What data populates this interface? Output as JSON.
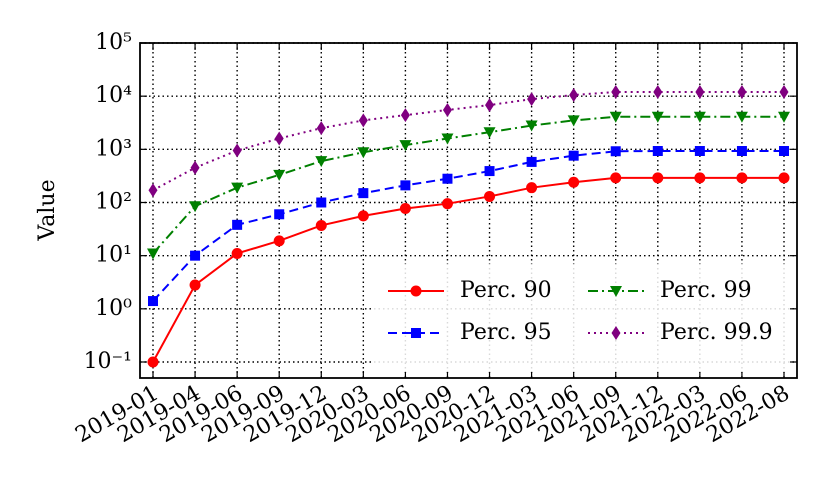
{
  "chart_data": {
    "type": "line",
    "ylabel": "Value",
    "yscale": "log",
    "grid": true,
    "legend": "lower right",
    "categories": [
      "2019-01",
      "2019-04",
      "2019-06",
      "2019-09",
      "2019-12",
      "2020-03",
      "2020-06",
      "2020-09",
      "2020-12",
      "2021-03",
      "2021-06",
      "2021-09",
      "2021-12",
      "2022-03",
      "2022-06",
      "2022-08"
    ],
    "series": [
      {
        "name": "Perc. 90",
        "color": "#ff0000",
        "marker": "circle",
        "linestyle": "solid",
        "values": [
          0.1,
          2.8,
          11,
          19,
          37,
          56,
          77,
          95,
          130,
          190,
          240,
          290,
          290,
          290,
          290,
          290
        ]
      },
      {
        "name": "Perc. 95",
        "color": "#0000ff",
        "marker": "square",
        "linestyle": "dashed",
        "values": [
          1.4,
          10,
          38,
          60,
          100,
          150,
          210,
          280,
          390,
          580,
          760,
          920,
          930,
          930,
          930,
          930
        ]
      },
      {
        "name": "Perc. 99",
        "color": "#008000",
        "marker": "triangle-down",
        "linestyle": "dashdot",
        "values": [
          11,
          85,
          190,
          330,
          600,
          880,
          1200,
          1600,
          2100,
          2800,
          3500,
          4100,
          4100,
          4100,
          4100,
          4100
        ]
      },
      {
        "name": "Perc. 99.9",
        "color": "#800080",
        "marker": "diamond",
        "linestyle": "dotted",
        "values": [
          170,
          450,
          950,
          1600,
          2500,
          3500,
          4400,
          5500,
          6800,
          8800,
          10500,
          12000,
          12000,
          12000,
          12000,
          12000
        ]
      }
    ],
    "ylim": [
      0.05,
      100000
    ],
    "yticks": [
      {
        "value": 0.1,
        "label": "10⁻¹"
      },
      {
        "value": 1,
        "label": "10⁰"
      },
      {
        "value": 10,
        "label": "10¹"
      },
      {
        "value": 100,
        "label": "10²"
      },
      {
        "value": 1000,
        "label": "10³"
      },
      {
        "value": 10000,
        "label": "10⁴"
      },
      {
        "value": 100000,
        "label": "10⁵"
      }
    ]
  }
}
